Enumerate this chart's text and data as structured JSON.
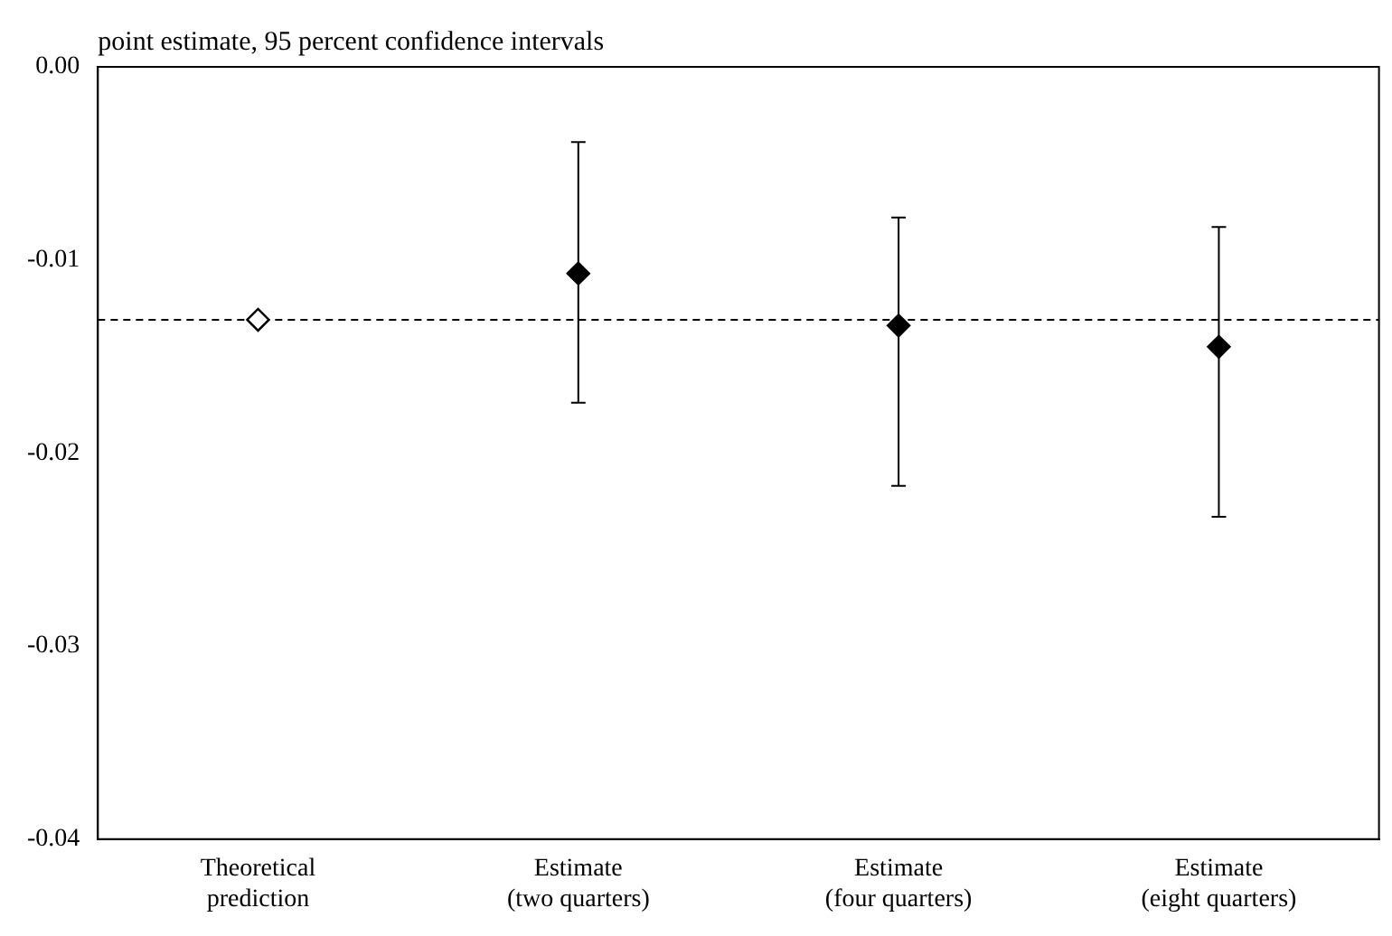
{
  "chart_data": {
    "type": "scatter",
    "title": "point estimate, 95 percent confidence intervals",
    "categories": [
      "Theoretical\nprediction",
      "Estimate\n(two quarters)",
      "Estimate\n(four quarters)",
      "Estimate\n(eight quarters)"
    ],
    "series": [
      {
        "color": "#000000",
        "colors": [
          "#ffffff",
          "#000000",
          "#000000",
          "#000000"
        ],
        "values": [
          -0.0131,
          -0.0107,
          -0.0134,
          -0.0145
        ],
        "errors": [
          null,
          [
            -0.0174,
            -0.0039
          ],
          [
            -0.0217,
            -0.0078
          ],
          [
            -0.0233,
            -0.0083
          ]
        ]
      }
    ],
    "ylim": [
      -0.04,
      0
    ],
    "yticks": [
      {
        "value": -0.04,
        "label": "-0.04"
      },
      {
        "value": -0.03,
        "label": "-0.03"
      },
      {
        "value": -0.02,
        "label": "-0.02"
      },
      {
        "value": -0.01,
        "label": "-0.01"
      },
      {
        "value": 0,
        "label": "0.00"
      }
    ],
    "ref_lines": [
      {
        "axis": "y",
        "value": -0.0131,
        "color": "#000000",
        "line_style": "dashed"
      }
    ],
    "marker": "diamond",
    "grid": false,
    "legend": false
  }
}
